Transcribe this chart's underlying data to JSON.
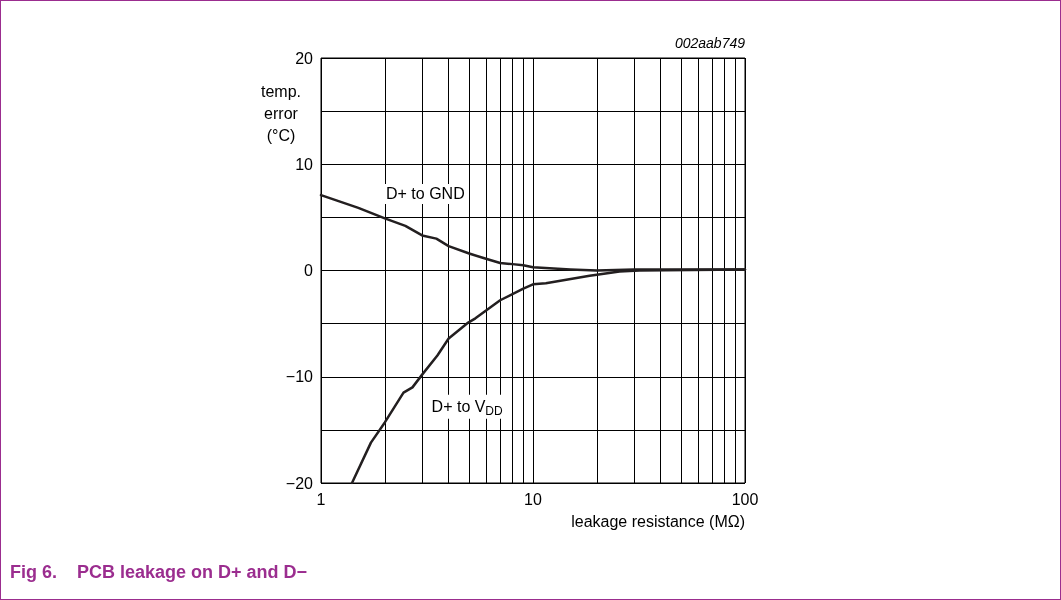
{
  "chart_data": {
    "type": "line",
    "title": "Fig 6.    PCB leakage on D+ and D−",
    "xlabel": "leakage resistance (MΩ)",
    "ylabel": "temp.\nerror\n(°C)",
    "log": "x",
    "grid": true,
    "marker": "none",
    "line_style": "solid",
    "xlim": [
      1,
      100
    ],
    "xticks": [
      1,
      {
        "value": 2,
        "label": null
      },
      {
        "value": 3,
        "label": null
      },
      {
        "value": 4,
        "label": null
      },
      {
        "value": 5,
        "label": null
      },
      {
        "value": 6,
        "label": null
      },
      {
        "value": 7,
        "label": null
      },
      {
        "value": 8,
        "label": null
      },
      {
        "value": 9,
        "label": null
      },
      10,
      {
        "value": 20,
        "label": null
      },
      {
        "value": 30,
        "label": null
      },
      {
        "value": 40,
        "label": null
      },
      {
        "value": 50,
        "label": null
      },
      {
        "value": 60,
        "label": null
      },
      {
        "value": 70,
        "label": null
      },
      {
        "value": 80,
        "label": null
      },
      {
        "value": 90,
        "label": null
      },
      100
    ],
    "ylim": [
      -20,
      20
    ],
    "yticks": [
      {
        "value": -20,
        "label": "−20"
      },
      {
        "value": -15,
        "label": null
      },
      {
        "value": -10,
        "label": "−10"
      },
      {
        "value": -5,
        "label": null
      },
      0,
      {
        "value": 5,
        "label": null
      },
      10,
      {
        "value": 15,
        "label": null
      },
      20
    ],
    "series": [
      {
        "name": "D+ to GND",
        "color": "#231f20",
        "x": [
          1,
          1.5,
          2,
          2.5,
          3,
          3.5,
          4,
          5,
          6,
          7,
          8,
          9,
          10,
          15,
          20,
          30,
          50,
          100
        ],
        "values": [
          7.1,
          5.9,
          4.9,
          4.2,
          3.3,
          3.0,
          2.3,
          1.6,
          1.1,
          0.7,
          0.6,
          0.5,
          0.3,
          0.1,
          0.0,
          0.1,
          0.1,
          0.1
        ]
      },
      {
        "name": "D+ to V$_{DD}$",
        "color": "#231f20",
        "x": [
          1.4,
          1.72,
          2,
          2.45,
          2.7,
          3,
          3.54,
          4,
          4.95,
          5.35,
          7,
          9,
          10,
          11.5,
          18.5,
          20,
          25.6,
          31.8,
          100
        ],
        "values": [
          -20,
          -16.2,
          -14.3,
          -11.5,
          -11.0,
          -9.8,
          -8.0,
          -6.4,
          -4.9,
          -4.5,
          -2.8,
          -1.7,
          -1.3,
          -1.2,
          -0.5,
          -0.4,
          -0.1,
          0,
          0.1
        ]
      }
    ],
    "annotations": [
      "002aab749"
    ]
  }
}
